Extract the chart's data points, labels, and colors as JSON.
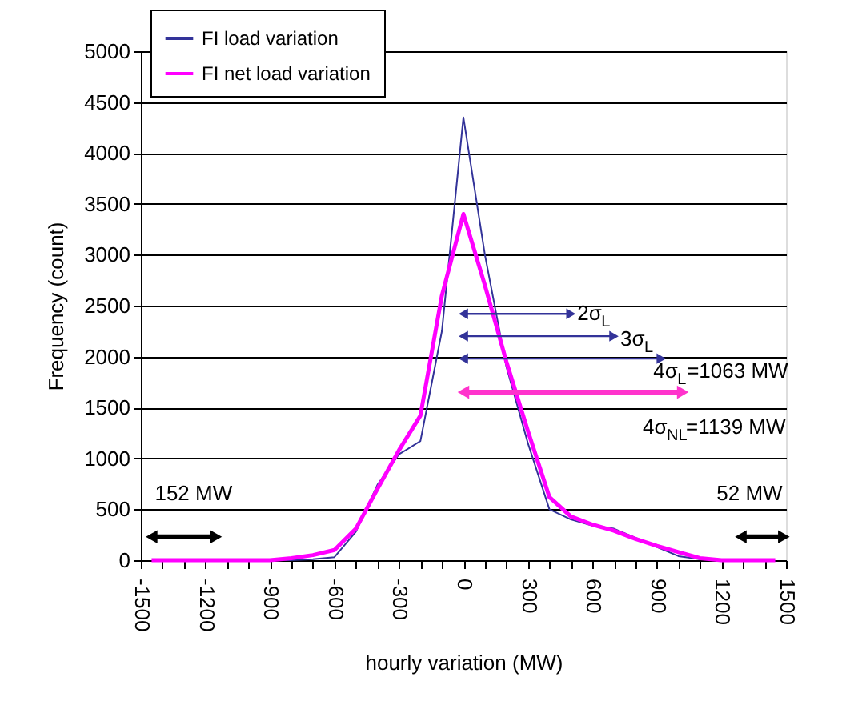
{
  "chart_data": {
    "type": "line",
    "xlabel": "hourly variation (MW)",
    "ylabel": "Frequency (count)",
    "x": [
      -1450,
      -1400,
      -1300,
      -1200,
      -1100,
      -1000,
      -900,
      -800,
      -700,
      -600,
      -500,
      -400,
      -300,
      -200,
      -100,
      0,
      100,
      200,
      300,
      400,
      500,
      600,
      700,
      800,
      900,
      1000,
      1100,
      1200,
      1300,
      1400,
      1450
    ],
    "series": [
      {
        "name": "FI load variation",
        "color": "#333399",
        "values": [
          null,
          null,
          null,
          null,
          null,
          null,
          0,
          0,
          10,
          30,
          280,
          740,
          1040,
          1170,
          2250,
          4350,
          3000,
          1900,
          1150,
          500,
          400,
          340,
          310,
          220,
          130,
          40,
          10,
          0,
          null,
          null,
          null
        ]
      },
      {
        "name": "FI net load variation",
        "color": "#ff00ff",
        "values": [
          0,
          0,
          0,
          0,
          0,
          0,
          0,
          20,
          50,
          100,
          310,
          700,
          1080,
          1420,
          2600,
          3400,
          2700,
          1950,
          1270,
          620,
          430,
          350,
          290,
          210,
          140,
          80,
          20,
          0,
          0,
          0,
          0
        ]
      },
      {
        "type": "line",
        "x": [
          0,
          500
        ],
        "values": [
          2420,
          2420
        ],
        "color": "#333399",
        "marker": "triangle"
      },
      {
        "type": "line",
        "x": [
          0,
          700
        ],
        "values": [
          2200,
          2200
        ],
        "color": "#333399",
        "marker": "triangle"
      },
      {
        "type": "line",
        "x": [
          0,
          920
        ],
        "values": [
          1980,
          1980
        ],
        "color": "#333399",
        "marker": "triangle"
      },
      {
        "type": "line",
        "x": [
          0,
          1020
        ],
        "values": [
          1650,
          1650
        ],
        "color": "#ff33cc",
        "marker": "triangle"
      },
      {
        "type": "line",
        "x": [
          -1450,
          -1150
        ],
        "values": [
          230,
          230
        ],
        "color": "#000000",
        "marker": "triangle"
      },
      {
        "type": "line",
        "x": [
          1290,
          1490
        ],
        "values": [
          230,
          230
        ],
        "color": "#000000",
        "marker": "triangle"
      }
    ],
    "annotations": [
      {
        "text": "2σ$_{L}$",
        "x": 500,
        "y": 2420
      },
      {
        "text": "3σ$_{L}$",
        "x": 700,
        "y": 2200
      },
      {
        "text": "4σ$_{L}$=1063 MW",
        "x": 920,
        "y": 1980
      },
      {
        "text": "4σ$_{NL}$=1139 MW",
        "x": 1020,
        "y": 1650
      },
      {
        "text": "152 MW",
        "x": -1450,
        "y": 230
      },
      {
        "text": "52 MW",
        "x": 1490,
        "y": 230
      }
    ],
    "xlim": [
      -1500,
      1500
    ],
    "xticks": [
      -1500,
      {
        "value": -1400,
        "label": null
      },
      {
        "value": -1300,
        "label": null
      },
      -1200,
      {
        "value": -1100,
        "label": null
      },
      {
        "value": -1000,
        "label": null
      },
      -900,
      {
        "value": -800,
        "label": null
      },
      {
        "value": -700,
        "label": null
      },
      -600,
      {
        "value": -500,
        "label": null
      },
      {
        "value": -400,
        "label": null
      },
      -300,
      {
        "value": -200,
        "label": null
      },
      {
        "value": -100,
        "label": null
      },
      0,
      {
        "value": 100,
        "label": null
      },
      {
        "value": 200,
        "label": null
      },
      300,
      {
        "value": 400,
        "label": null
      },
      {
        "value": 500,
        "label": null
      },
      600,
      {
        "value": 700,
        "label": null
      },
      {
        "value": 800,
        "label": null
      },
      900,
      {
        "value": 1000,
        "label": null
      },
      {
        "value": 1100,
        "label": null
      },
      1200,
      {
        "value": 1300,
        "label": null
      },
      {
        "value": 1400,
        "label": null
      },
      1500
    ],
    "ylim": [
      0,
      5000
    ],
    "yticks": [
      0,
      500,
      1000,
      1500,
      2000,
      2500,
      3000,
      3500,
      4000,
      4500,
      5000
    ],
    "grid": "y",
    "legend": "top left"
  }
}
